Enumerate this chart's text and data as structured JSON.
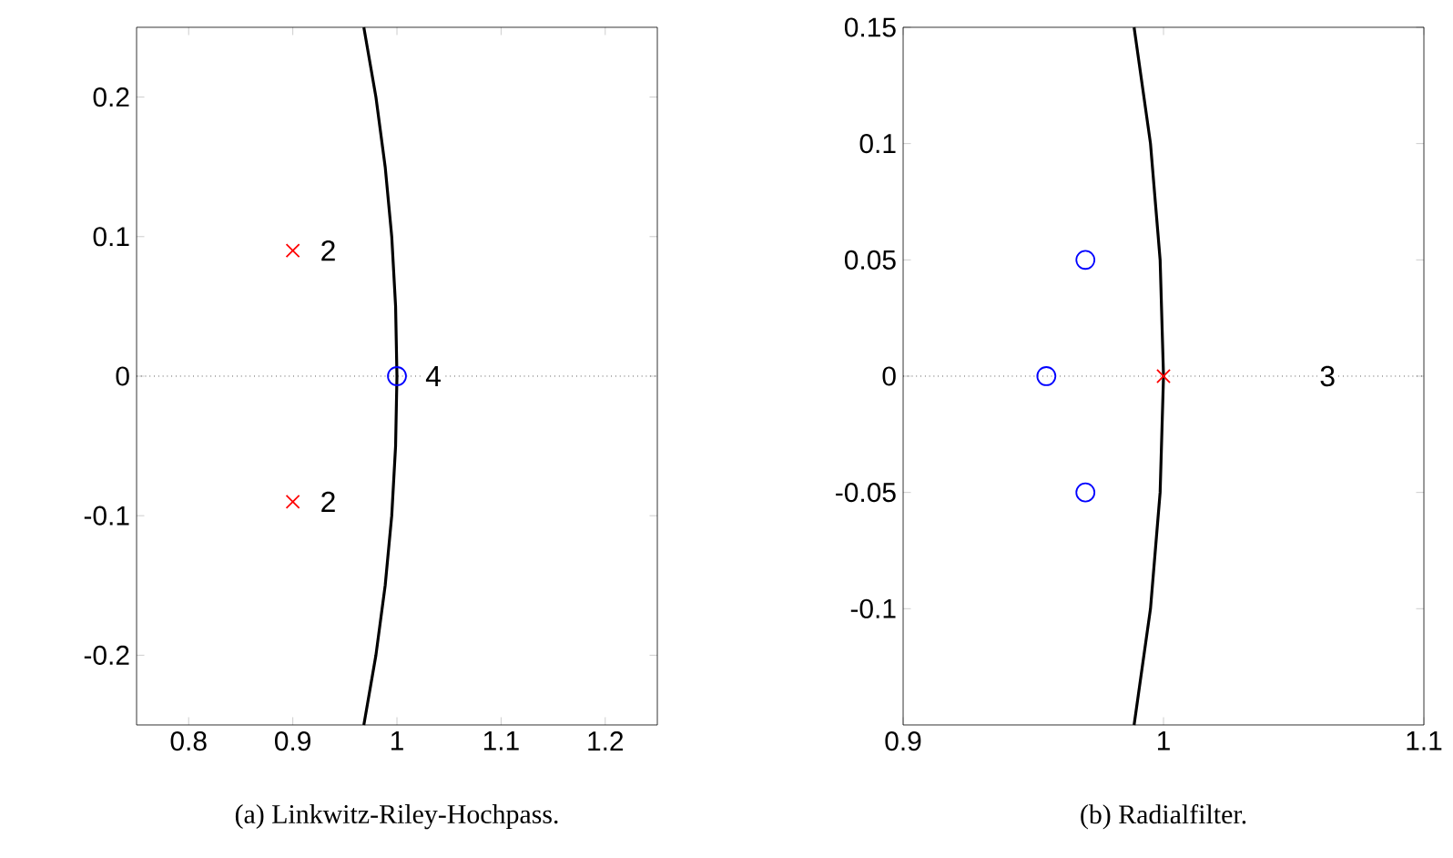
{
  "chart_data": [
    {
      "type": "scatter",
      "xlim": [
        0.75,
        1.25
      ],
      "ylim": [
        -0.25,
        0.25
      ],
      "xticks": [
        0.8,
        0.9,
        1,
        1.1,
        1.2
      ],
      "yticks": [
        -0.2,
        -0.1,
        0,
        0.1,
        0.2
      ],
      "series": [
        {
          "type": "line",
          "color": "#000000",
          "marker": "none",
          "x": [
            0.9682,
            0.9798,
            0.9887,
            0.995,
            0.9987,
            1,
            0.9987,
            0.995,
            0.9887,
            0.9798,
            0.9682
          ],
          "values": [
            -0.25,
            -0.2,
            -0.15,
            -0.1,
            -0.05,
            0,
            0.05,
            0.1,
            0.15,
            0.2,
            0.25
          ]
        },
        {
          "color": "#ff0000",
          "marker": "cross",
          "x": [
            0.9,
            0.9
          ],
          "values": [
            0.09,
            -0.09
          ]
        },
        {
          "color": "#0000ff",
          "marker": "circle",
          "x": [
            1
          ],
          "values": [
            0
          ]
        }
      ],
      "ref_lines": [
        {
          "axis": "y",
          "value": 0,
          "line_style": "dotted"
        }
      ],
      "annotations": [
        {
          "text": "2",
          "x": 0.934,
          "y": 0.09
        },
        {
          "text": "2",
          "x": 0.934,
          "y": -0.09
        },
        {
          "text": "4",
          "x": 1.035,
          "y": 0
        },
        "(a) Linkwitz-Riley-Hochpass."
      ]
    },
    {
      "type": "scatter",
      "xlim": [
        0.9,
        1.1
      ],
      "ylim": [
        -0.15,
        0.15
      ],
      "xticks": [
        0.9,
        1,
        1.1
      ],
      "yticks": [
        -0.1,
        -0.05,
        0,
        0.05,
        0.1,
        0.15
      ],
      "series": [
        {
          "type": "line",
          "color": "#000000",
          "marker": "none",
          "x": [
            0.9887,
            0.995,
            0.9987,
            1,
            0.9987,
            0.995,
            0.9887
          ],
          "values": [
            -0.15,
            -0.1,
            -0.05,
            0,
            0.05,
            0.1,
            0.15
          ]
        },
        {
          "color": "#0000ff",
          "marker": "circle",
          "x": [
            0.97,
            0.955,
            0.97
          ],
          "values": [
            0.05,
            0,
            -0.05
          ]
        },
        {
          "color": "#ff0000",
          "marker": "cross",
          "x": [
            1
          ],
          "values": [
            0
          ]
        }
      ],
      "ref_lines": [
        {
          "axis": "y",
          "value": 0,
          "line_style": "dotted"
        }
      ],
      "annotations": [
        {
          "text": "3",
          "x": 1.063,
          "y": 0
        },
        "(b) Radialfilter."
      ]
    }
  ]
}
